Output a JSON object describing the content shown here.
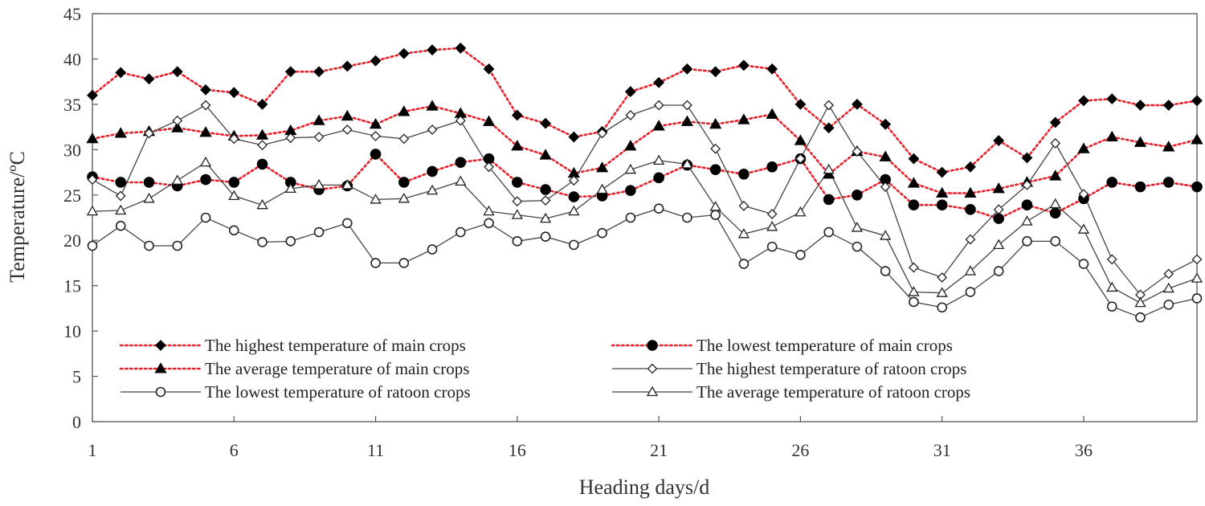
{
  "chart_data": {
    "type": "line",
    "title": "",
    "xlabel": "Heading days/d",
    "ylabel": "Temperature/ºC",
    "xlim": [
      1,
      40
    ],
    "ylim": [
      0,
      45
    ],
    "x_ticks": [
      1,
      6,
      11,
      16,
      21,
      26,
      31,
      36
    ],
    "y_ticks": [
      0,
      5,
      10,
      15,
      20,
      25,
      30,
      35,
      40,
      45
    ],
    "legend_position": "bottom-left inside",
    "x": [
      1,
      2,
      3,
      4,
      5,
      6,
      7,
      8,
      9,
      10,
      11,
      12,
      13,
      14,
      15,
      16,
      17,
      18,
      19,
      20,
      21,
      22,
      23,
      24,
      25,
      26,
      27,
      28,
      29,
      30,
      31,
      32,
      33,
      34,
      35,
      36,
      37,
      38,
      39,
      40
    ],
    "series": [
      {
        "name": "The highest temperature of main crops",
        "color": "#e8202a",
        "line": "dotted",
        "marker": "diamond-filled",
        "values": [
          36.0,
          38.5,
          37.8,
          38.6,
          36.6,
          36.3,
          35.0,
          38.6,
          38.6,
          39.2,
          39.8,
          40.6,
          41.0,
          41.2,
          38.9,
          33.8,
          32.9,
          31.4,
          32.0,
          36.4,
          37.4,
          38.9,
          38.6,
          39.3,
          38.9,
          35.0,
          32.4,
          35.0,
          32.8,
          29.0,
          27.5,
          28.1,
          31.0,
          29.1,
          33.0,
          35.4,
          35.6,
          34.9,
          34.9,
          35.4
        ]
      },
      {
        "name": "The lowest temperature of main crops",
        "color": "#e8202a",
        "line": "dotted",
        "marker": "circle-filled",
        "values": [
          27.0,
          26.4,
          26.4,
          26.0,
          26.7,
          26.4,
          28.4,
          26.4,
          25.6,
          26.0,
          29.5,
          26.4,
          27.6,
          28.6,
          29.0,
          26.4,
          25.6,
          24.8,
          24.9,
          25.5,
          26.9,
          28.3,
          27.8,
          27.3,
          28.1,
          29.0,
          24.5,
          25.0,
          26.7,
          23.9,
          23.9,
          23.4,
          22.4,
          23.9,
          23.0,
          24.6,
          26.4,
          25.9,
          26.4,
          25.9
        ]
      },
      {
        "name": "The average temperature of main crops",
        "color": "#e8202a",
        "line": "dotted",
        "marker": "triangle-filled",
        "values": [
          31.2,
          31.8,
          32.0,
          32.4,
          31.9,
          31.5,
          31.6,
          32.1,
          33.2,
          33.7,
          32.8,
          34.2,
          34.8,
          34.0,
          33.1,
          30.4,
          29.4,
          27.4,
          28.0,
          30.4,
          32.6,
          33.1,
          32.8,
          33.3,
          33.9,
          31.0,
          27.3,
          29.8,
          29.2,
          26.3,
          25.2,
          25.2,
          25.7,
          26.4,
          27.1,
          30.1,
          31.4,
          30.8,
          30.3,
          31.1
        ]
      },
      {
        "name": "The highest temperature of ratoon crops",
        "color": "#444444",
        "line": "solid",
        "marker": "diamond-open",
        "values": [
          26.7,
          24.9,
          31.8,
          33.2,
          34.9,
          31.2,
          30.5,
          31.3,
          31.4,
          32.2,
          31.5,
          31.2,
          32.2,
          33.2,
          28.1,
          24.3,
          24.4,
          26.6,
          31.8,
          33.8,
          34.9,
          34.9,
          30.1,
          23.8,
          22.9,
          29.0,
          34.9,
          29.8,
          25.9,
          17.0,
          15.9,
          20.1,
          23.4,
          26.1,
          30.7,
          25.1,
          17.9,
          14.0,
          16.3,
          17.9
        ]
      },
      {
        "name": "The lowest temperature of ratoon crops",
        "color": "#444444",
        "line": "solid",
        "marker": "circle-open",
        "values": [
          19.4,
          21.6,
          19.4,
          19.4,
          22.5,
          21.1,
          19.8,
          19.9,
          20.9,
          21.9,
          17.5,
          17.5,
          19.0,
          20.9,
          21.9,
          19.9,
          20.4,
          19.5,
          20.8,
          22.5,
          23.5,
          22.5,
          22.8,
          17.4,
          19.3,
          18.4,
          20.9,
          19.3,
          16.6,
          13.2,
          12.6,
          14.3,
          16.6,
          19.9,
          19.9,
          17.4,
          12.7,
          11.5,
          12.9,
          13.6
        ]
      },
      {
        "name": "The average temperature of ratoon crops",
        "color": "#444444",
        "line": "solid",
        "marker": "triangle-open",
        "values": [
          23.2,
          23.3,
          24.6,
          26.6,
          28.6,
          24.9,
          23.9,
          25.7,
          26.1,
          26.1,
          24.5,
          24.6,
          25.5,
          26.5,
          23.2,
          22.8,
          22.4,
          23.2,
          25.6,
          27.8,
          28.8,
          28.4,
          23.7,
          20.7,
          21.5,
          23.1,
          27.8,
          21.4,
          20.5,
          14.3,
          14.2,
          16.6,
          19.5,
          22.1,
          24.0,
          21.2,
          14.8,
          13.1,
          14.7,
          15.8
        ]
      }
    ]
  }
}
